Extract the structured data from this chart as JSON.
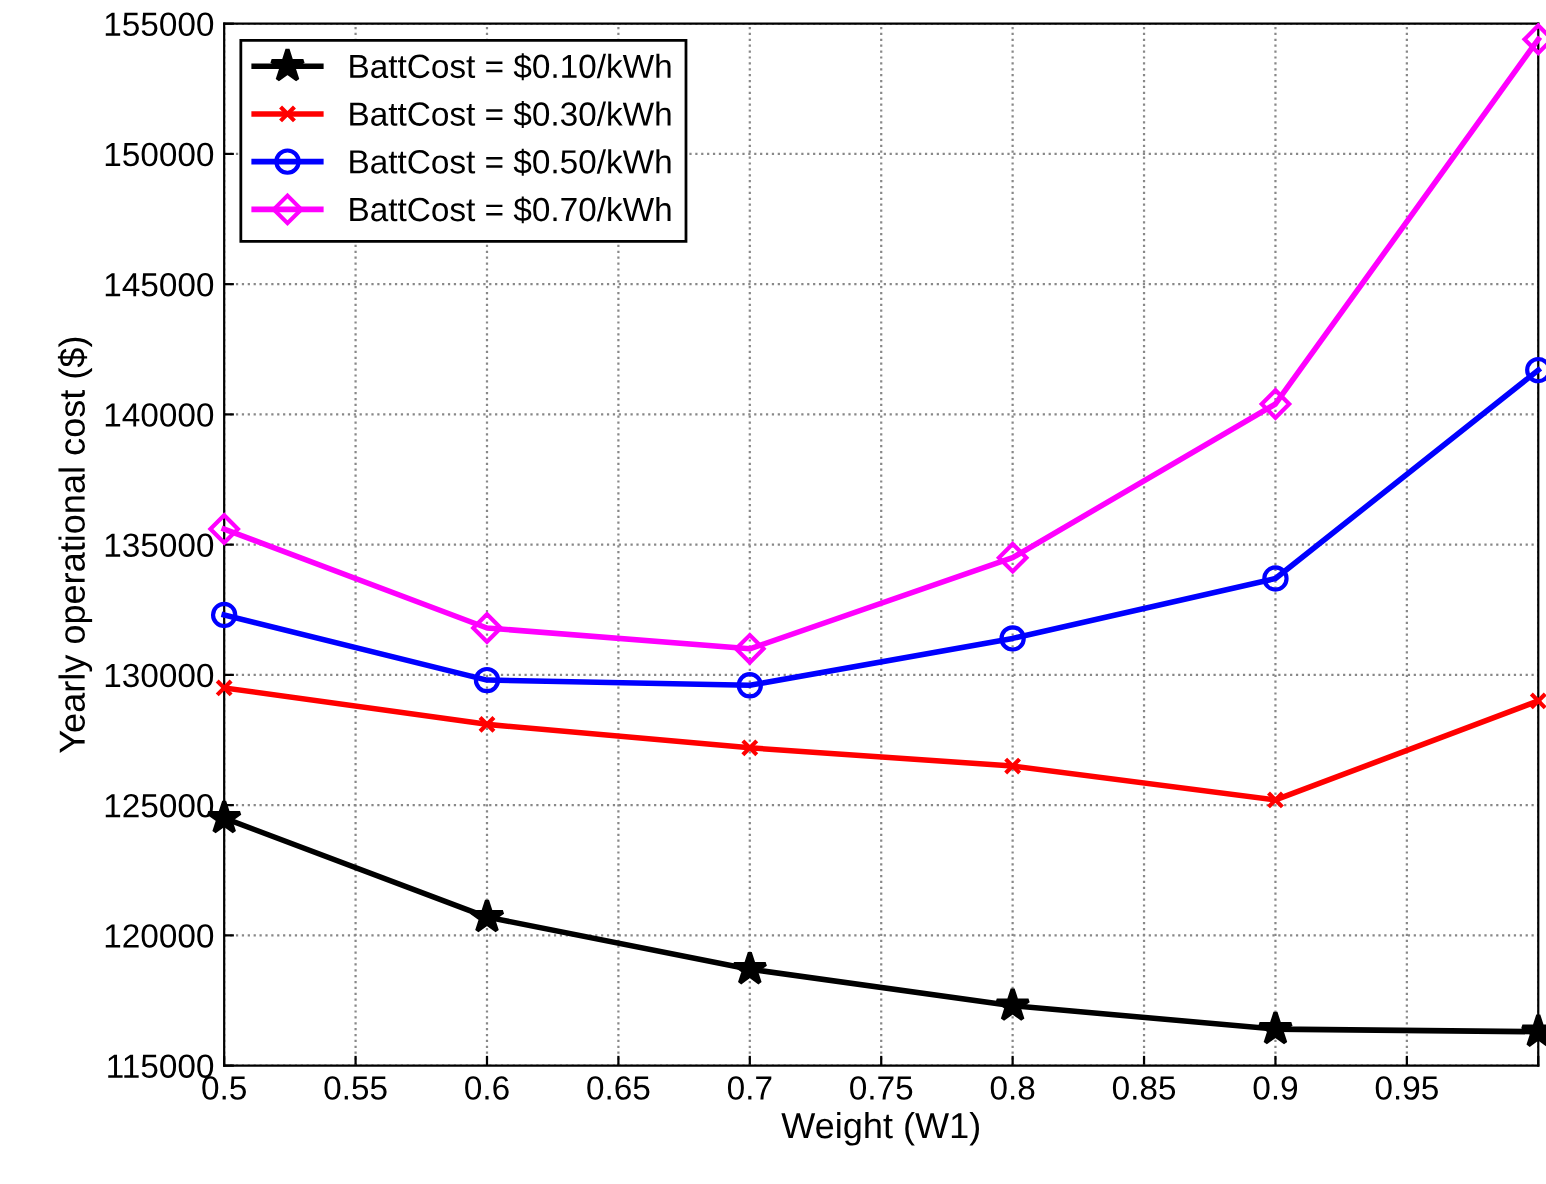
{
  "chart_data": {
    "type": "line",
    "xlabel": "Weight (W1)",
    "ylabel": "Yearly operational cost ($)",
    "x": [
      0.5,
      0.6,
      0.7,
      0.8,
      0.9,
      1.0
    ],
    "series": [
      {
        "name": "BattCost = $0.10/kWh",
        "color": "#000000",
        "marker": "star",
        "values": [
          124500,
          120700,
          118700,
          117300,
          116400,
          116300
        ]
      },
      {
        "name": "BattCost = $0.30/kWh",
        "color": "#ff0000",
        "marker": "cross",
        "values": [
          129500,
          128100,
          127200,
          126500,
          125200,
          129000
        ]
      },
      {
        "name": "BattCost = $0.50/kWh",
        "color": "#0000ff",
        "marker": "circle",
        "values": [
          132300,
          129800,
          129600,
          131400,
          133700,
          141700
        ]
      },
      {
        "name": "BattCost = $0.70/kWh",
        "color": "#ff00ff",
        "marker": "diamond",
        "values": [
          135600,
          131800,
          131000,
          134500,
          140400,
          154400
        ]
      }
    ],
    "xlim": [
      0.5,
      1.0
    ],
    "xticks": [
      0.5,
      0.55,
      0.6,
      0.65,
      0.7,
      0.75,
      0.8,
      0.85,
      0.9,
      0.95,
      {
        "value": 1.0,
        "label": null
      }
    ],
    "ylim": [
      115000,
      155000
    ],
    "yticks": [
      115000,
      120000,
      125000,
      130000,
      135000,
      140000,
      145000,
      150000,
      155000
    ],
    "grid": true,
    "legend": "top left",
    "line_style": "solid"
  }
}
